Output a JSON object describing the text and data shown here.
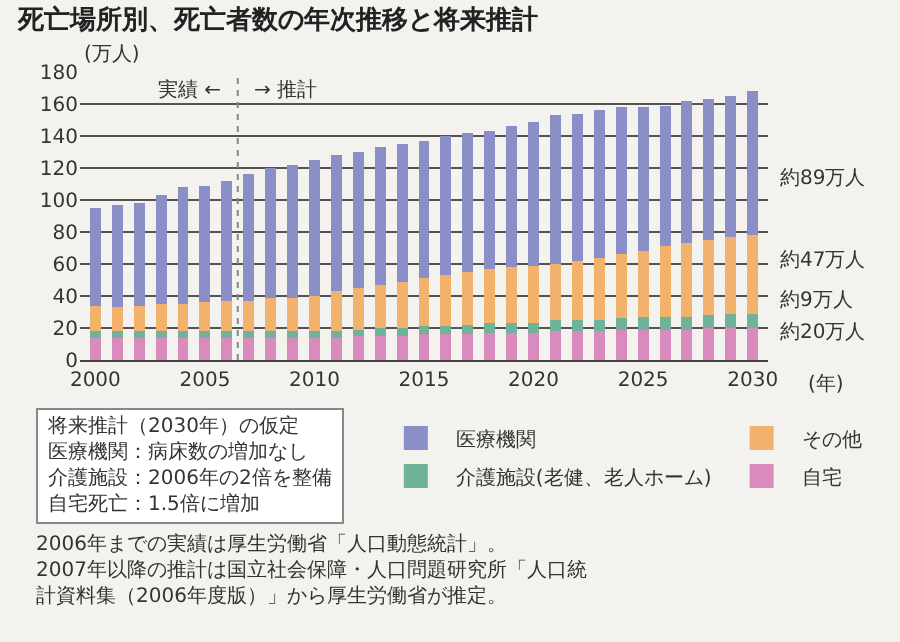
{
  "chart_data": {
    "type": "bar",
    "stacked": true,
    "title": "死亡場所別、死亡者数の年次推移と将来推計",
    "ylabel": "(万人)",
    "xlabel": "(年)",
    "x": [
      2000,
      2001,
      2002,
      2003,
      2004,
      2005,
      2006,
      2007,
      2008,
      2009,
      2010,
      2011,
      2012,
      2013,
      2014,
      2015,
      2016,
      2017,
      2018,
      2019,
      2020,
      2021,
      2022,
      2023,
      2024,
      2025,
      2026,
      2027,
      2028,
      2029,
      2030
    ],
    "series": [
      {
        "name": "自宅",
        "color": "#d98bbd",
        "values": [
          14,
          14,
          14,
          14,
          14,
          14,
          14,
          14,
          14,
          14,
          14,
          14,
          15,
          15,
          15,
          16,
          16,
          16,
          17,
          17,
          17,
          18,
          18,
          18,
          19,
          19,
          19,
          19,
          20,
          20,
          20
        ]
      },
      {
        "name": "介護施設(老健、老人ホーム)",
        "color": "#6fb39a",
        "values": [
          4,
          4,
          4,
          4,
          4,
          4,
          4,
          4,
          4,
          4,
          4,
          4,
          4,
          5,
          5,
          5,
          5,
          6,
          6,
          6,
          6,
          7,
          7,
          7,
          7,
          8,
          8,
          8,
          8,
          9,
          9
        ]
      },
      {
        "name": "その他",
        "color": "#f2b26b",
        "values": [
          16,
          15,
          16,
          17,
          17,
          18,
          19,
          19,
          21,
          21,
          22,
          25,
          26,
          27,
          29,
          30,
          32,
          33,
          34,
          35,
          36,
          35,
          37,
          39,
          40,
          41,
          44,
          46,
          47,
          48,
          49
        ]
      },
      {
        "name": "医療機関",
        "color": "#8b8fc8",
        "values": [
          61,
          64,
          64,
          68,
          73,
          73,
          75,
          79,
          81,
          83,
          85,
          85,
          85,
          86,
          86,
          86,
          87,
          87,
          86,
          88,
          90,
          93,
          92,
          92,
          92,
          90,
          88,
          89,
          88,
          88,
          90
        ]
      }
    ],
    "xlim": [
      1999.3,
      2030.7
    ],
    "xticks": [
      2000,
      2005,
      2010,
      2015,
      2020,
      2025,
      2030
    ],
    "ylim": [
      0,
      180
    ],
    "yticks": [
      0,
      20,
      40,
      60,
      80,
      100,
      120,
      140,
      160,
      180
    ],
    "grid": "y",
    "legend": "bottom right",
    "ref_lines": [
      {
        "axis": "x",
        "value": 2006.5,
        "color": "#888888",
        "line_style": "dotted"
      }
    ],
    "annotations": [
      "実績 ←",
      "→ 推計",
      "約89万人",
      "約47万人",
      "約9万人",
      "約20万人",
      "将来推計（2030年）の仮定",
      "医療機関：病床数の増加なし",
      "介護施設：2006年の2倍を整備",
      "自宅死亡：1.5倍に増加",
      "2006年までの実績は厚生労働省「人口動態統計」。",
      "2007年以降の推計は国立社会保障・人口問題研究所「人口統計資料集（2006年度版）」から厚生労働省が推定。"
    ]
  }
}
